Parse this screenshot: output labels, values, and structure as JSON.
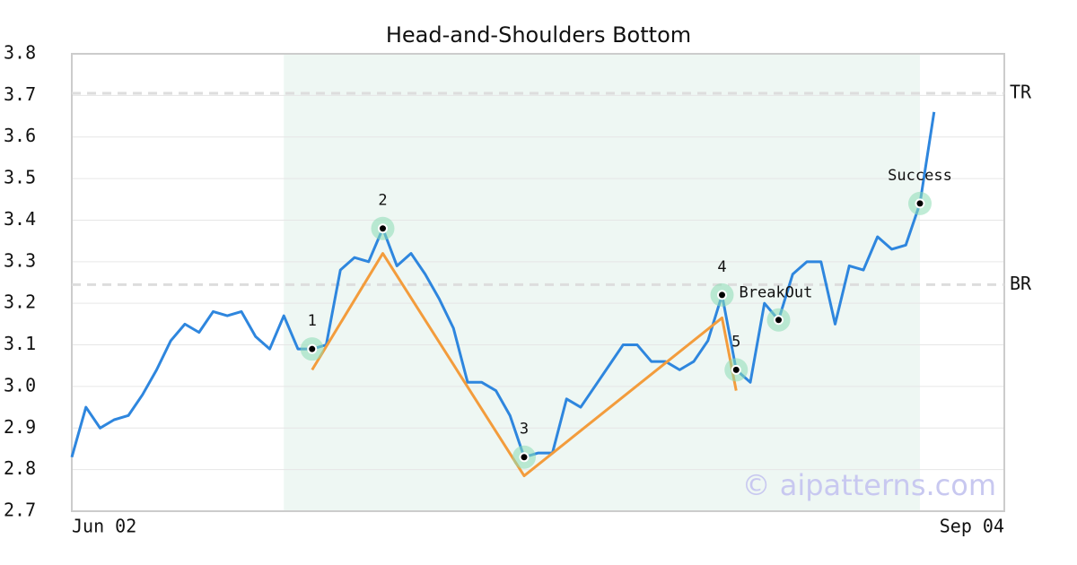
{
  "chart_data": {
    "type": "line",
    "title": "Head-and-Shoulders Bottom",
    "categories": [
      "Jun 02",
      null,
      null,
      null,
      null,
      null,
      null,
      null,
      null,
      null,
      null,
      null,
      null,
      null,
      null,
      null,
      null,
      null,
      null,
      null,
      null,
      null,
      null,
      null,
      null,
      null,
      null,
      null,
      null,
      null,
      null,
      null,
      null,
      null,
      null,
      null,
      null,
      null,
      null,
      null,
      null,
      null,
      null,
      null,
      null,
      null,
      null,
      null,
      null,
      null,
      null,
      null,
      null,
      null,
      null,
      null,
      null,
      null,
      null,
      null,
      null,
      "Sep 04"
    ],
    "series": [
      {
        "color": "#2e86de",
        "values": [
          2.83,
          2.95,
          2.9,
          2.92,
          2.93,
          2.98,
          3.04,
          3.11,
          3.15,
          3.13,
          3.18,
          3.17,
          3.18,
          3.12,
          3.09,
          3.17,
          3.09,
          3.09,
          3.1,
          3.28,
          3.31,
          3.3,
          3.38,
          3.29,
          3.32,
          3.27,
          3.21,
          3.14,
          3.01,
          3.01,
          2.99,
          2.93,
          2.83,
          2.84,
          2.84,
          2.97,
          2.95,
          3.0,
          3.05,
          3.1,
          3.1,
          3.06,
          3.06,
          3.04,
          3.06,
          3.11,
          3.22,
          3.04,
          3.01,
          3.2,
          3.16,
          3.27,
          3.3,
          3.3,
          3.15,
          3.29,
          3.28,
          3.36,
          3.33,
          3.34,
          3.44,
          3.66
        ]
      }
    ],
    "pattern": {
      "color": "#f39c3c",
      "x": [
        17,
        22,
        32,
        46,
        47
      ],
      "values": [
        3.04,
        3.32,
        2.785,
        3.165,
        2.99
      ]
    },
    "points": [
      {
        "label": "1",
        "x": 17,
        "value": 3.09
      },
      {
        "label": "2",
        "x": 22,
        "value": 3.38
      },
      {
        "label": "3",
        "x": 32,
        "value": 2.83
      },
      {
        "label": "4",
        "x": 46,
        "value": 3.22
      },
      {
        "label": "5",
        "x": 47,
        "value": 3.04
      },
      {
        "label": "BreakOut",
        "x": 50,
        "value": 3.16
      },
      {
        "label": "Success",
        "x": 60,
        "value": 3.44
      }
    ],
    "levels": [
      {
        "label": "TR",
        "value": 3.705
      },
      {
        "label": "BR",
        "value": 3.245
      }
    ],
    "ylim": [
      2.7,
      3.8
    ],
    "yticks": [
      2.7,
      2.8,
      2.9,
      {
        "value": 3,
        "label": "3.0"
      },
      3.1,
      3.2,
      3.3,
      3.4,
      3.5,
      3.6,
      3.7,
      3.8
    ],
    "grid": true,
    "watermark": "© aipatterns.com"
  }
}
